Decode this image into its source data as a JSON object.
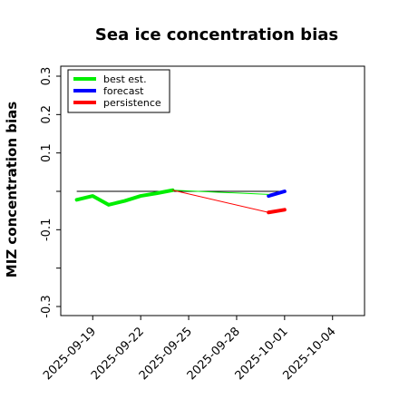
{
  "chart_data": {
    "type": "line",
    "title": "Sea ice concentration bias",
    "xlabel": "",
    "ylabel": "MIZ concentration bias",
    "ylim": [
      -0.3,
      0.3
    ],
    "yticks": [
      -0.3,
      -0.2,
      -0.1,
      0.0,
      0.1,
      0.2,
      0.3
    ],
    "ytick_labels": [
      "-0.3",
      "",
      "-0.1",
      "",
      "0.1",
      "0.2",
      "0.3"
    ],
    "xlim": [
      "2025-09-17",
      "2025-10-06"
    ],
    "xticks": [
      "2025-09-19",
      "2025-09-22",
      "2025-09-25",
      "2025-09-28",
      "2025-10-01",
      "2025-10-04"
    ],
    "xtick_labels": [
      "2025-09-19",
      "2025-09-22",
      "2025-09-25",
      "2025-09-28",
      "2025-10-01",
      "2025-10-04"
    ],
    "highlight_tick": "2025-09-25",
    "highlight_color": "#008000",
    "legend_position": "upper-left",
    "zero_line": {
      "x": [
        "2025-09-18",
        "2025-10-01"
      ],
      "y": 0.0,
      "color": "#000000"
    },
    "series": [
      {
        "name": "best est.",
        "color": "#00ee00",
        "x": [
          "2025-09-18",
          "2025-09-19",
          "2025-09-20",
          "2025-09-21",
          "2025-09-22",
          "2025-09-23",
          "2025-09-24"
        ],
        "values": [
          -0.022,
          -0.012,
          -0.035,
          -0.025,
          -0.012,
          -0.005,
          0.003
        ]
      },
      {
        "name": "forecast",
        "color": "#0000ff",
        "x": [
          "2025-09-30",
          "2025-10-01"
        ],
        "values": [
          -0.012,
          0.0
        ]
      },
      {
        "name": "persistence",
        "color": "#ff0000",
        "x": [
          "2025-09-30",
          "2025-10-01"
        ],
        "values": [
          -0.055,
          -0.048
        ]
      },
      {
        "name": "best est. (thin)",
        "legend": false,
        "color": "#00ee00",
        "x": [
          "2025-09-24",
          "2025-09-30"
        ],
        "values": [
          0.003,
          -0.008
        ]
      },
      {
        "name": "persistence (thin)",
        "legend": false,
        "color": "#ff0000",
        "x": [
          "2025-09-24",
          "2025-09-30"
        ],
        "values": [
          0.003,
          -0.055
        ]
      }
    ]
  }
}
